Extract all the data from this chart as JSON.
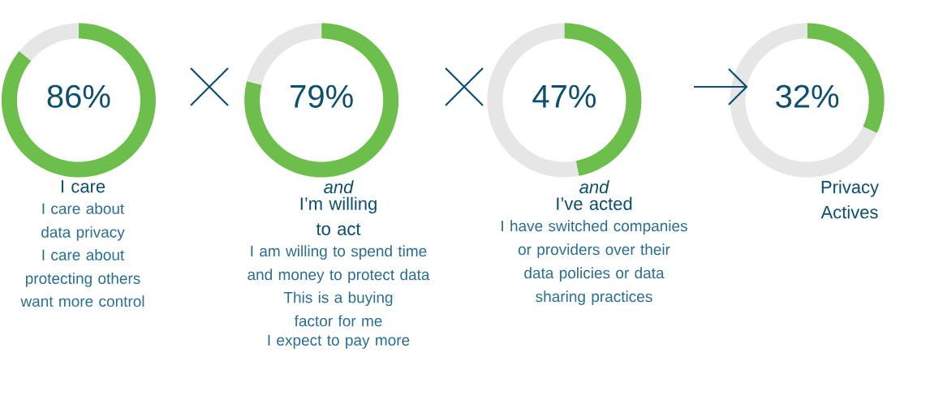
{
  "chart_data": [
    {
      "type": "donut",
      "categories": [
        null,
        null
      ],
      "values": [
        86,
        14
      ],
      "colors": [
        "#6cbf4a",
        "#e6e6e6"
      ],
      "value_labels": [
        "86%",
        null
      ],
      "title": "I care",
      "annotations": [
        "I care about data privacy",
        "I care about protecting others",
        "want more control"
      ]
    },
    {
      "type": "donut",
      "categories": [
        null,
        null
      ],
      "values": [
        79,
        21
      ],
      "colors": [
        "#6cbf4a",
        "#e6e6e6"
      ],
      "value_labels": [
        "79%",
        null
      ],
      "subtitle": "and",
      "title": "I’m willing to act",
      "annotations": [
        "I am willing to spend time and money to protect data",
        "This is a buying factor for me",
        "I expect to pay more"
      ]
    },
    {
      "type": "donut",
      "categories": [
        null,
        null
      ],
      "values": [
        47,
        53
      ],
      "colors": [
        "#6cbf4a",
        "#e6e6e6"
      ],
      "value_labels": [
        "47%",
        null
      ],
      "subtitle": "and",
      "title": "I’ve acted",
      "annotations": [
        "I have switched companies or providers over their data policies or data sharing practices"
      ]
    },
    {
      "type": "donut",
      "categories": [
        null,
        null
      ],
      "values": [
        32,
        68
      ],
      "colors": [
        "#6cbf4a",
        "#e6e6e6"
      ],
      "value_labels": [
        "32%",
        null
      ],
      "title": "Privacy Actives"
    }
  ]
}
